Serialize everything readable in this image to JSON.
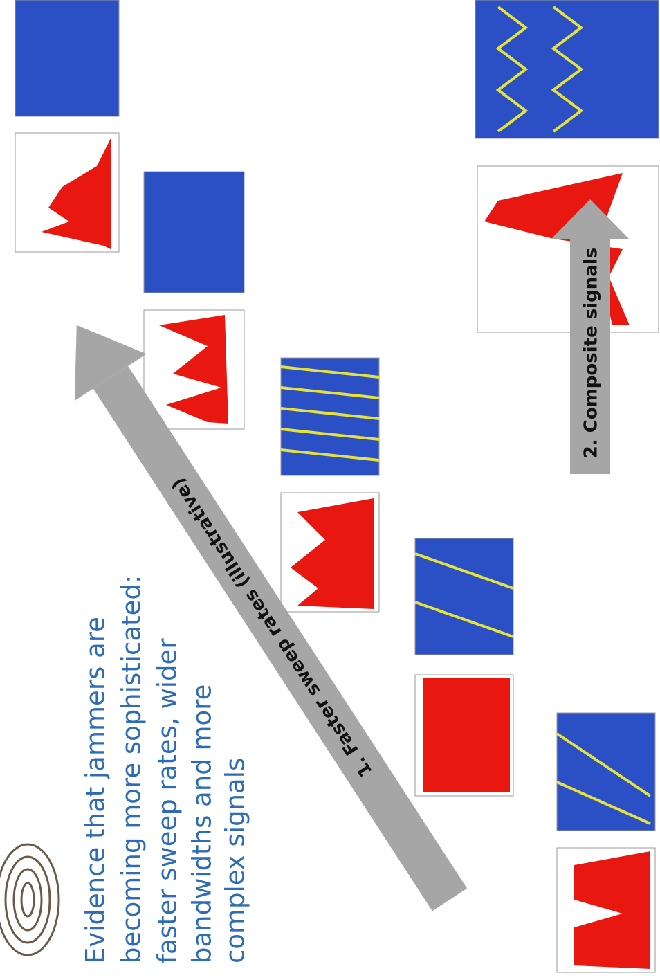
{
  "slide": {
    "text_lines": [
      "Evidence that jammers are",
      "becoming more sophisticated:",
      "faster sweep rates, wider",
      "bandwidths and more",
      "complex signals"
    ],
    "arrow_1_label": "1. Faster sweep rates (illustrative)",
    "arrow_2_label": "2. Composite signals"
  }
}
